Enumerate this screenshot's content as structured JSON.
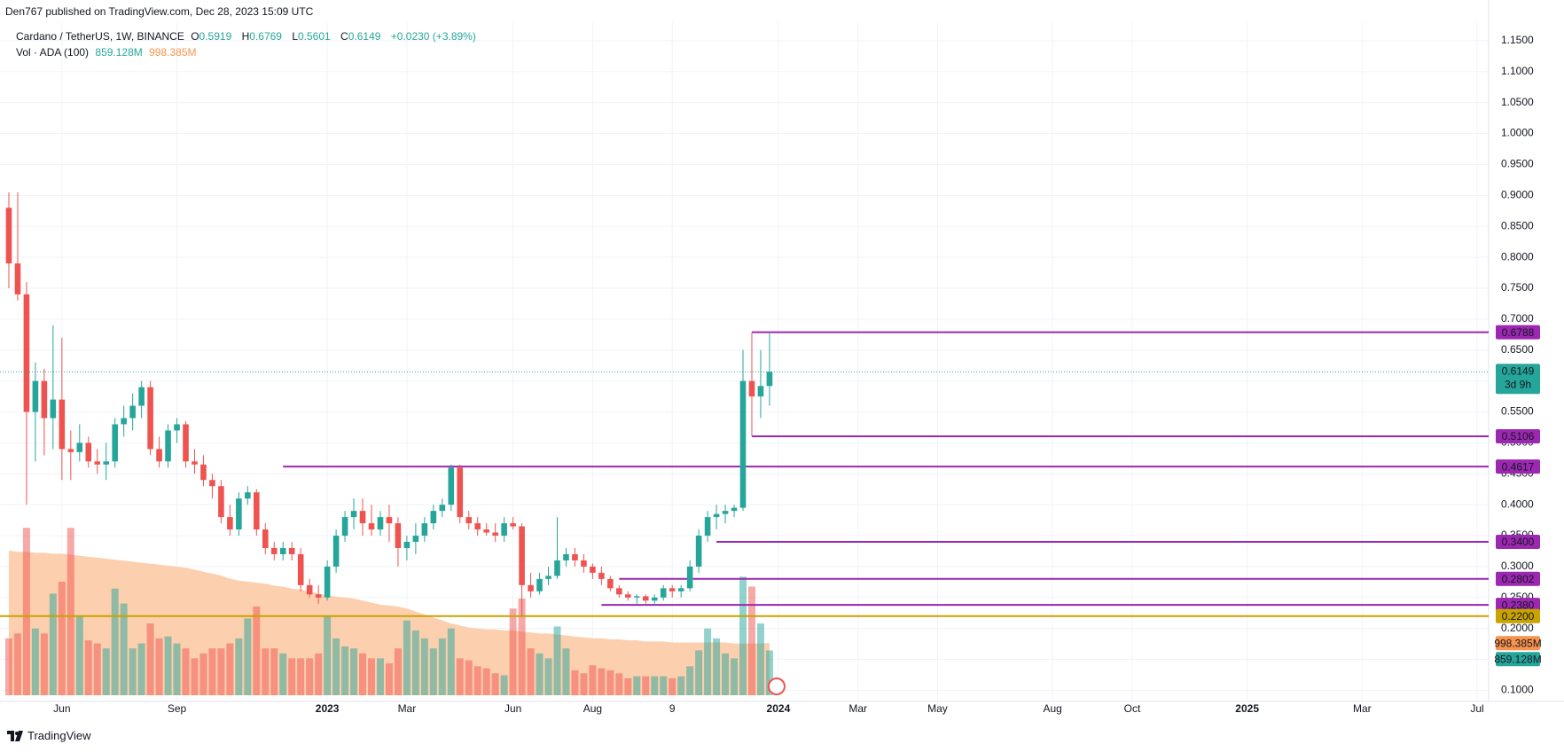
{
  "header": {
    "published": "Den767 published on TradingView.com, Dec 28, 2023 15:09 UTC",
    "symbol": "Cardano / TetherUS, 1W, BINANCE",
    "ohlc_letters": [
      "O",
      "H",
      "L",
      "C"
    ],
    "change": "+0.0230 (+3.89%)",
    "volume_legend": "Vol · ADA (100)",
    "footer": "TradingView"
  },
  "chart_data": {
    "type": "candlestick",
    "xlim": [
      -1,
      167.3
    ],
    "xticks": [
      {
        "value": 6,
        "label": "Jun"
      },
      {
        "value": 19,
        "label": "Sep"
      },
      {
        "value": 36,
        "label": "2023"
      },
      {
        "value": 45,
        "label": "Mar"
      },
      {
        "value": 57,
        "label": "Jun"
      },
      {
        "value": 66,
        "label": "Aug"
      },
      {
        "value": 75,
        "label": "9"
      },
      {
        "value": 87,
        "label": "2024"
      },
      {
        "value": 96,
        "label": "Mar"
      },
      {
        "value": 105,
        "label": "May"
      },
      {
        "value": 118,
        "label": "Aug"
      },
      {
        "value": 127,
        "label": "Oct"
      },
      {
        "value": 140,
        "label": "2025"
      },
      {
        "value": 153,
        "label": "Mar"
      },
      {
        "value": 166,
        "label": "Jul"
      }
    ],
    "ylim": [
      0.082,
      1.18
    ],
    "yticks": [
      {
        "value": 0.1,
        "label": "0.1000"
      },
      {
        "value": 0.15,
        "label": "0.1500"
      },
      {
        "value": 0.2,
        "label": "0.2000"
      },
      {
        "value": 0.25,
        "label": "0.2500"
      },
      {
        "value": 0.3,
        "label": "0.3000"
      },
      {
        "value": 0.35,
        "label": "0.3500"
      },
      {
        "value": 0.4,
        "label": "0.4000"
      },
      {
        "value": 0.45,
        "label": "0.4500"
      },
      {
        "value": 0.5,
        "label": "0.5000"
      },
      {
        "value": 0.55,
        "label": "0.5500"
      },
      {
        "value": 0.6,
        "label": "0.6000"
      },
      {
        "value": 0.65,
        "label": "0.6500"
      },
      {
        "value": 0.7,
        "label": "0.7000"
      },
      {
        "value": 0.75,
        "label": "0.7500"
      },
      {
        "value": 0.8,
        "label": "0.8000"
      },
      {
        "value": 0.85,
        "label": "0.8500"
      },
      {
        "value": 0.9,
        "label": "0.9000"
      },
      {
        "value": 0.95,
        "label": "0.9500"
      },
      {
        "value": 1.0,
        "label": "1.0000"
      },
      {
        "value": 1.05,
        "label": "1.0500"
      },
      {
        "value": 1.1,
        "label": "1.1000"
      },
      {
        "value": 1.15,
        "label": "1.1500"
      }
    ],
    "grid": true,
    "up_color": "#26a69a",
    "down_color": "#ef5350",
    "volume_up_color": "rgba(38,166,154,0.5)",
    "volume_down_color": "rgba(239,83,80,0.5)",
    "volume_ma_color": "#fccfae",
    "volume_ylim": [
      0,
      12900000000.0
    ],
    "open": [
      0.88,
      0.79,
      0.74,
      0.55,
      0.6,
      0.54,
      0.57,
      0.49,
      0.485,
      0.5,
      0.47,
      0.465,
      0.47,
      0.53,
      0.54,
      0.56,
      0.59,
      0.49,
      0.47,
      0.52,
      0.53,
      0.47,
      0.465,
      0.44,
      0.43,
      0.38,
      0.36,
      0.41,
      0.42,
      0.36,
      0.33,
      0.32,
      0.33,
      0.32,
      0.27,
      0.255,
      0.25,
      0.3,
      0.35,
      0.38,
      0.39,
      0.37,
      0.36,
      0.38,
      0.37,
      0.33,
      0.34,
      0.35,
      0.37,
      0.39,
      0.4,
      0.46,
      0.38,
      0.37,
      0.36,
      0.355,
      0.35,
      0.37,
      0.365,
      0.27,
      0.26,
      0.28,
      0.285,
      0.31,
      0.32,
      0.31,
      0.3,
      0.29,
      0.28,
      0.265,
      0.255,
      0.25,
      0.252,
      0.245,
      0.25,
      0.265,
      0.26,
      0.265,
      0.3,
      0.35,
      0.38,
      0.385,
      0.39,
      0.395,
      0.6,
      0.575,
      0.5919
    ],
    "high": [
      0.905,
      0.905,
      0.76,
      0.63,
      0.62,
      0.69,
      0.67,
      0.52,
      0.53,
      0.51,
      0.49,
      0.5,
      0.54,
      0.56,
      0.58,
      0.6,
      0.6,
      0.51,
      0.53,
      0.54,
      0.535,
      0.49,
      0.48,
      0.45,
      0.44,
      0.4,
      0.42,
      0.43,
      0.425,
      0.37,
      0.34,
      0.34,
      0.34,
      0.33,
      0.28,
      0.27,
      0.31,
      0.36,
      0.39,
      0.41,
      0.41,
      0.4,
      0.39,
      0.4,
      0.38,
      0.35,
      0.37,
      0.38,
      0.4,
      0.41,
      0.465,
      0.465,
      0.39,
      0.38,
      0.37,
      0.37,
      0.38,
      0.38,
      0.37,
      0.29,
      0.29,
      0.3,
      0.38,
      0.33,
      0.33,
      0.32,
      0.305,
      0.3,
      0.285,
      0.27,
      0.26,
      0.255,
      0.255,
      0.255,
      0.27,
      0.27,
      0.27,
      0.31,
      0.36,
      0.39,
      0.4,
      0.4,
      0.4,
      0.65,
      0.6788,
      0.65,
      0.6769
    ],
    "low": [
      0.75,
      0.73,
      0.4,
      0.47,
      0.48,
      0.49,
      0.44,
      0.44,
      0.47,
      0.46,
      0.45,
      0.44,
      0.46,
      0.51,
      0.52,
      0.54,
      0.48,
      0.46,
      0.46,
      0.5,
      0.46,
      0.45,
      0.43,
      0.41,
      0.37,
      0.35,
      0.35,
      0.4,
      0.35,
      0.32,
      0.31,
      0.31,
      0.31,
      0.26,
      0.25,
      0.24,
      0.245,
      0.29,
      0.34,
      0.36,
      0.35,
      0.35,
      0.35,
      0.34,
      0.3,
      0.31,
      0.32,
      0.34,
      0.36,
      0.38,
      0.39,
      0.37,
      0.36,
      0.35,
      0.35,
      0.34,
      0.34,
      0.36,
      0.22,
      0.25,
      0.255,
      0.27,
      0.28,
      0.3,
      0.3,
      0.29,
      0.28,
      0.27,
      0.26,
      0.25,
      0.245,
      0.24,
      0.24,
      0.24,
      0.245,
      0.25,
      0.25,
      0.26,
      0.29,
      0.34,
      0.36,
      0.37,
      0.38,
      0.39,
      0.5106,
      0.54,
      0.5601
    ],
    "close": [
      0.79,
      0.74,
      0.55,
      0.6,
      0.54,
      0.57,
      0.49,
      0.485,
      0.5,
      0.47,
      0.465,
      0.47,
      0.53,
      0.54,
      0.56,
      0.59,
      0.49,
      0.47,
      0.52,
      0.53,
      0.47,
      0.465,
      0.44,
      0.43,
      0.38,
      0.36,
      0.41,
      0.42,
      0.36,
      0.33,
      0.32,
      0.33,
      0.32,
      0.27,
      0.255,
      0.25,
      0.3,
      0.35,
      0.38,
      0.39,
      0.37,
      0.36,
      0.38,
      0.37,
      0.33,
      0.34,
      0.35,
      0.37,
      0.39,
      0.4,
      0.46,
      0.38,
      0.37,
      0.36,
      0.355,
      0.35,
      0.37,
      0.365,
      0.27,
      0.26,
      0.28,
      0.285,
      0.31,
      0.32,
      0.31,
      0.3,
      0.29,
      0.28,
      0.265,
      0.255,
      0.25,
      0.252,
      0.245,
      0.25,
      0.265,
      0.26,
      0.265,
      0.3,
      0.35,
      0.38,
      0.385,
      0.39,
      0.395,
      0.6,
      0.575,
      0.5919,
      0.6149
    ],
    "volume": [
      1089000000.0,
      1184000000.0,
      3209000000.0,
      1280000000.0,
      1184000000.0,
      1948000000.0,
      2177000000.0,
      3209000000.0,
      1509000000.0,
      1051000000.0,
      993000000.0,
      898000000.0,
      2044000000.0,
      1757000000.0,
      898000000.0,
      993000000.0,
      1375000000.0,
      1089000000.0,
      1127000000.0,
      993000000.0,
      898000000.0,
      707000000.0,
      802000000.0,
      898000000.0,
      898000000.0,
      993000000.0,
      1089000000.0,
      1471000000.0,
      1700000000.0,
      898000000.0,
      898000000.0,
      802000000.0,
      707000000.0,
      707000000.0,
      707000000.0,
      802000000.0,
      1509000000.0,
      1089000000.0,
      936000000.0,
      898000000.0,
      802000000.0,
      707000000.0,
      707000000.0,
      611000000.0,
      898000000.0,
      1433000000.0,
      1242000000.0,
      1089000000.0,
      898000000.0,
      1089000000.0,
      1280000000.0,
      707000000.0,
      669000000.0,
      554000000.0,
      516000000.0,
      420000000.0,
      382000000.0,
      1662000000.0,
      1853000000.0,
      898000000.0,
      802000000.0,
      707000000.0,
      1318000000.0,
      898000000.0,
      478000000.0,
      420000000.0,
      573000000.0,
      516000000.0,
      478000000.0,
      420000000.0,
      325000000.0,
      363000000.0,
      363000000.0,
      363000000.0,
      363000000.0,
      325000000.0,
      363000000.0,
      554000000.0,
      860000000.0,
      1280000000.0,
      1089000000.0,
      802000000.0,
      707000000.0,
      2273000000.0,
      2082000000.0,
      1375000000.0,
      859128000
    ],
    "volume_ma": [
      2770000000.0,
      2750000000.0,
      2750000000.0,
      2731000000.0,
      2731000000.0,
      2712000000.0,
      2712000000.0,
      2693000000.0,
      2674000000.0,
      2655000000.0,
      2636000000.0,
      2617000000.0,
      2598000000.0,
      2579000000.0,
      2559000000.0,
      2540000000.0,
      2521000000.0,
      2502000000.0,
      2483000000.0,
      2464000000.0,
      2445000000.0,
      2407000000.0,
      2368000000.0,
      2330000000.0,
      2292000000.0,
      2235000000.0,
      2197000000.0,
      2177000000.0,
      2158000000.0,
      2139000000.0,
      2101000000.0,
      2082000000.0,
      2044000000.0,
      2025000000.0,
      1986000000.0,
      1948000000.0,
      1910000000.0,
      1891000000.0,
      1872000000.0,
      1853000000.0,
      1815000000.0,
      1776000000.0,
      1738000000.0,
      1719000000.0,
      1700000000.0,
      1662000000.0,
      1604000000.0,
      1547000000.0,
      1490000000.0,
      1433000000.0,
      1375000000.0,
      1337000000.0,
      1299000000.0,
      1280000000.0,
      1261000000.0,
      1261000000.0,
      1242000000.0,
      1242000000.0,
      1222000000.0,
      1203000000.0,
      1184000000.0,
      1184000000.0,
      1165000000.0,
      1146000000.0,
      1127000000.0,
      1108000000.0,
      1089000000.0,
      1089000000.0,
      1070000000.0,
      1070000000.0,
      1051000000.0,
      1051000000.0,
      1031000000.0,
      1031000000.0,
      1031000000.0,
      1012000000.0,
      1012000000.0,
      1012000000.0,
      1012000000.0,
      1012000000.0,
      1012000000.0,
      1012000000.0,
      993000000.0,
      993000000.0,
      993000000.0,
      993000000.0,
      998385000
    ],
    "volume_label": "859.128M",
    "volume_ma_label": "998.385M",
    "countdown": "3d 9h",
    "levels": [
      {
        "value": 0.6788,
        "label": "0.6788",
        "from": 84,
        "color": "#9c27b0",
        "text_color": "#ffffff"
      },
      {
        "value": 0.5106,
        "label": "0.5106",
        "from": 84,
        "color": "#9c27b0",
        "text_color": "#ffffff"
      },
      {
        "value": 0.4617,
        "label": "0.4617",
        "from": 31,
        "color": "#9c27b0",
        "text_color": "#ffffff"
      },
      {
        "value": 0.34,
        "label": "0.3400",
        "from": 80,
        "color": "#9c27b0",
        "text_color": "#ffffff"
      },
      {
        "value": 0.2802,
        "label": "0.2802",
        "from": 69,
        "color": "#9c27b0",
        "text_color": "#ffffff"
      },
      {
        "value": 0.238,
        "label": "0.2380",
        "from": 67,
        "color": "#9c27b0",
        "text_color": "#ffffff"
      },
      {
        "value": 0.22,
        "label": "0.2200",
        "from": -1,
        "color": "#c9a300",
        "text_color": "#131722"
      }
    ]
  }
}
